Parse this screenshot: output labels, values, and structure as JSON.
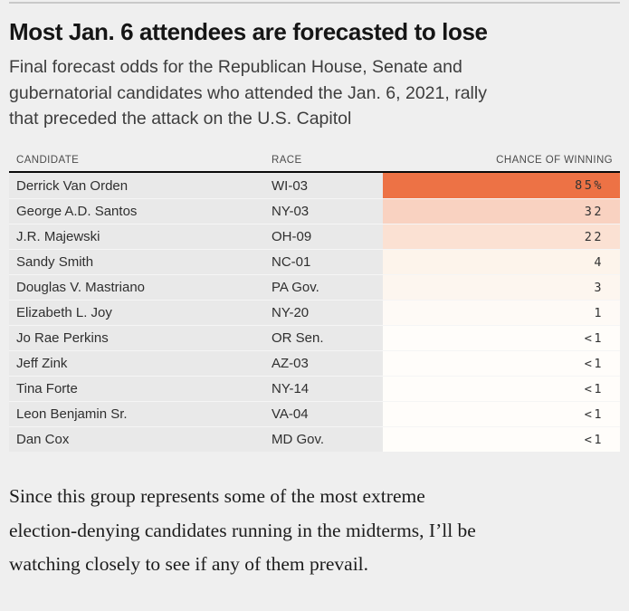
{
  "header": {
    "title": "Most Jan. 6 attendees are forecasted to lose",
    "subtitle_lines": [
      "Final forecast odds for the Republican House, Senate and",
      "gubernatorial candidates who attended the Jan. 6, 2021, rally",
      "that preceded the attack on the U.S. Capitol"
    ]
  },
  "table": {
    "columns": {
      "candidate": "CANDIDATE",
      "race": "RACE",
      "chance": "CHANCE OF WINNING"
    },
    "rows": [
      {
        "candidate": "Derrick Van Orden",
        "race": "WI-03",
        "chance": "85%",
        "chance_color": "#ed7245"
      },
      {
        "candidate": "George A.D. Santos",
        "race": "NY-03",
        "chance": "32",
        "chance_color": "#f9d2c1"
      },
      {
        "candidate": "J.R. Majewski",
        "race": "OH-09",
        "chance": "22",
        "chance_color": "#fbe1d3"
      },
      {
        "candidate": "Sandy Smith",
        "race": "NC-01",
        "chance": "4",
        "chance_color": "#fdf4eb"
      },
      {
        "candidate": "Douglas V. Mastriano",
        "race": "PA Gov.",
        "chance": "3",
        "chance_color": "#fdf6ef"
      },
      {
        "candidate": "Elizabeth L. Joy",
        "race": "NY-20",
        "chance": "1",
        "chance_color": "#fefaf6"
      },
      {
        "candidate": "Jo Rae Perkins",
        "race": "OR Sen.",
        "chance": "<1",
        "chance_color": "#fffdfa"
      },
      {
        "candidate": "Jeff Zink",
        "race": "AZ-03",
        "chance": "<1",
        "chance_color": "#fffdfa"
      },
      {
        "candidate": "Tina Forte",
        "race": "NY-14",
        "chance": "<1",
        "chance_color": "#fffdfa"
      },
      {
        "candidate": "Leon Benjamin Sr.",
        "race": "VA-04",
        "chance": "<1",
        "chance_color": "#fffdfa"
      },
      {
        "candidate": "Dan Cox",
        "race": "MD Gov.",
        "chance": "<1",
        "chance_color": "#fffdfa"
      }
    ]
  },
  "footer": {
    "lines": [
      "Since this group represents some of the most extreme",
      "election-denying candidates running in the midterms, I’ll be",
      "watching closely to see if any of them prevail."
    ]
  },
  "chart_data": {
    "type": "table",
    "title": "Most Jan. 6 attendees are forecasted to lose",
    "subtitle": "Final forecast odds for the Republican House, Senate and gubernatorial candidates who attended the Jan. 6, 2021, rally that preceded the attack on the U.S. Capitol",
    "columns": [
      "CANDIDATE",
      "RACE",
      "CHANCE OF WINNING"
    ],
    "rows": [
      [
        "Derrick Van Orden",
        "WI-03",
        "85%"
      ],
      [
        "George A.D. Santos",
        "NY-03",
        "32"
      ],
      [
        "J.R. Majewski",
        "OH-09",
        "22"
      ],
      [
        "Sandy Smith",
        "NC-01",
        "4"
      ],
      [
        "Douglas V. Mastriano",
        "PA Gov.",
        "3"
      ],
      [
        "Elizabeth L. Joy",
        "NY-20",
        "1"
      ],
      [
        "Jo Rae Perkins",
        "OR Sen.",
        "<1"
      ],
      [
        "Jeff Zink",
        "AZ-03",
        "<1"
      ],
      [
        "Tina Forte",
        "NY-14",
        "<1"
      ],
      [
        "Leon Benjamin Sr.",
        "VA-04",
        "<1"
      ],
      [
        "Dan Cox",
        "MD Gov.",
        "<1"
      ]
    ],
    "chance_values_numeric": [
      85,
      32,
      22,
      4,
      3,
      1,
      0.5,
      0.5,
      0.5,
      0.5,
      0.5
    ],
    "heat_colors": [
      "#ed7245",
      "#f9d2c1",
      "#fbe1d3",
      "#fdf4eb",
      "#fdf6ef",
      "#fefaf6",
      "#fffdfa",
      "#fffdfa",
      "#fffdfa",
      "#fffdfa",
      "#fffdfa"
    ],
    "note": "Since this group represents some of the most extreme election-denying candidates running in the midterms, I’ll be watching closely to see if any of them prevail."
  }
}
